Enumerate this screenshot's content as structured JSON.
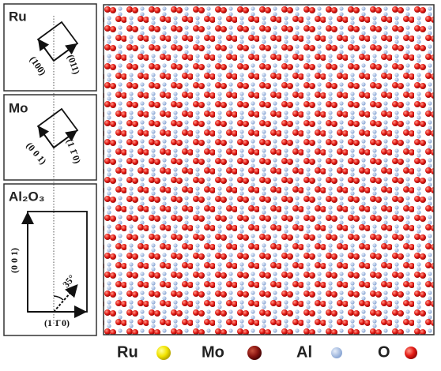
{
  "panels": [
    {
      "label": "Ru",
      "indices": [
        "(100)",
        "(011)"
      ]
    },
    {
      "label": "Mo",
      "indices": [
        "(0 0 1)",
        "(1 1̄ 0)"
      ]
    },
    {
      "label": "Al₂O₃",
      "indices": [
        "(0 0 1)",
        "(1 1̄ 0)"
      ],
      "angle": "35°"
    }
  ],
  "legend": [
    "Ru",
    "Mo",
    "Al",
    "O"
  ]
}
